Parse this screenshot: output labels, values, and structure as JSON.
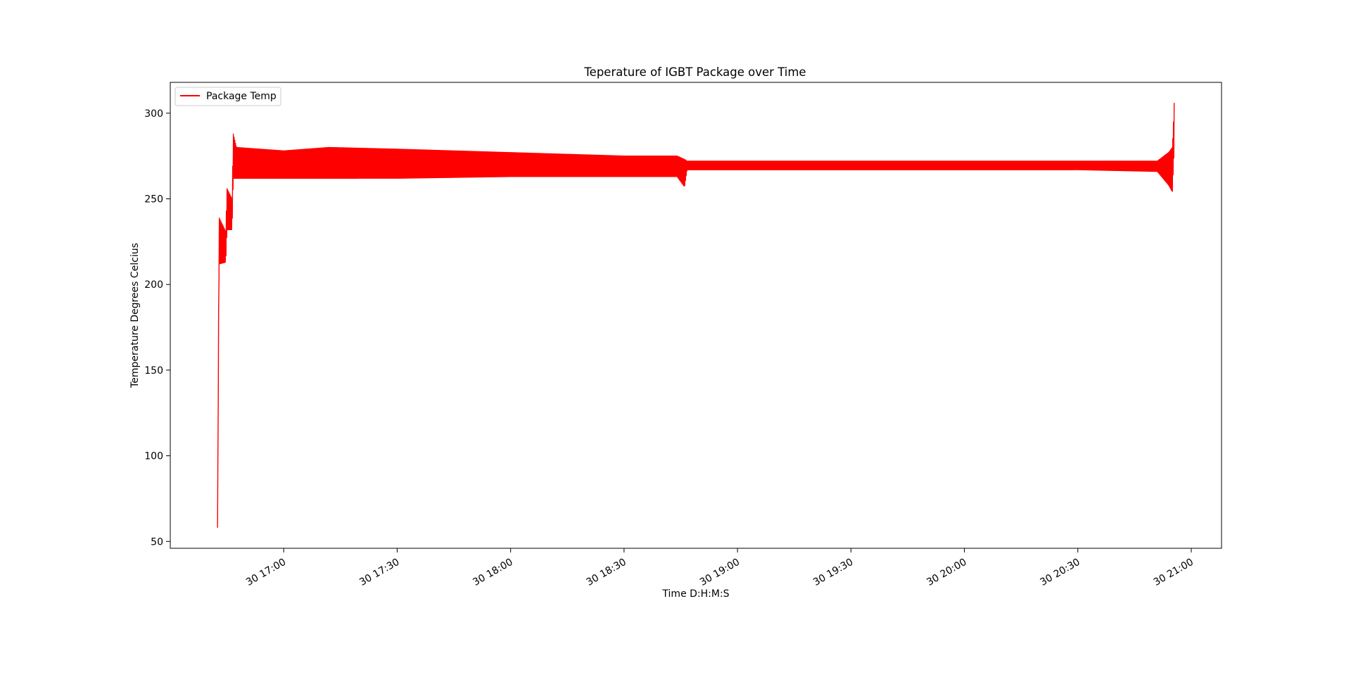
{
  "chart_data": {
    "type": "line",
    "title": "Teperature of IGBT Package over Time",
    "xlabel": "Time D:H:M:S",
    "ylabel": "Temperature Degrees Celcius",
    "xlim": [
      "30 16:30",
      "30 21:08"
    ],
    "ylim": [
      46,
      318
    ],
    "x_ticks": [
      {
        "t": "30 17:00",
        "label": "30 17:00"
      },
      {
        "t": "30 17:30",
        "label": "30 17:30"
      },
      {
        "t": "30 18:00",
        "label": "30 18:00"
      },
      {
        "t": "30 18:30",
        "label": "30 18:30"
      },
      {
        "t": "30 19:00",
        "label": "30 19:00"
      },
      {
        "t": "30 19:30",
        "label": "30 19:30"
      },
      {
        "t": "30 20:00",
        "label": "30 20:00"
      },
      {
        "t": "30 20:30",
        "label": "30 20:30"
      },
      {
        "t": "30 21:00",
        "label": "30 21:00"
      }
    ],
    "y_ticks": [
      50,
      100,
      150,
      200,
      250,
      300
    ],
    "grid": false,
    "legend": {
      "position": "top-left",
      "entries": [
        "Package Temp"
      ]
    },
    "series": [
      {
        "name": "Package Temp",
        "color": "#ff0000",
        "envelope": [
          {
            "t": "30 16:42:30",
            "lo": 58,
            "hi": 58
          },
          {
            "t": "30 16:42:54",
            "lo": 212,
            "hi": 239
          },
          {
            "t": "30 16:44:40",
            "lo": 213,
            "hi": 231
          },
          {
            "t": "30 16:45:00",
            "lo": 232,
            "hi": 256
          },
          {
            "t": "30 16:46:20",
            "lo": 232,
            "hi": 250
          },
          {
            "t": "30 16:46:40",
            "lo": 262,
            "hi": 288
          },
          {
            "t": "30 16:47:30",
            "lo": 262,
            "hi": 280
          },
          {
            "t": "30 17:00:00",
            "lo": 262,
            "hi": 278
          },
          {
            "t": "30 17:12:00",
            "lo": 262,
            "hi": 280
          },
          {
            "t": "30 17:30:00",
            "lo": 262,
            "hi": 279
          },
          {
            "t": "30 18:00:00",
            "lo": 263,
            "hi": 277
          },
          {
            "t": "30 18:30:00",
            "lo": 263,
            "hi": 275
          },
          {
            "t": "30 18:44:00",
            "lo": 263,
            "hi": 275
          },
          {
            "t": "30 18:46:00",
            "lo": 257,
            "hi": 273
          },
          {
            "t": "30 18:46:40",
            "lo": 267,
            "hi": 272
          },
          {
            "t": "30 19:30:00",
            "lo": 267,
            "hi": 272
          },
          {
            "t": "30 20:00:00",
            "lo": 267,
            "hi": 272
          },
          {
            "t": "30 20:30:00",
            "lo": 267,
            "hi": 272
          },
          {
            "t": "30 20:51:00",
            "lo": 266,
            "hi": 272
          },
          {
            "t": "30 20:54:00",
            "lo": 258,
            "hi": 277
          },
          {
            "t": "30 20:55:00",
            "lo": 254,
            "hi": 280
          },
          {
            "t": "30 20:55:30",
            "lo": 280,
            "hi": 306
          }
        ]
      }
    ]
  }
}
